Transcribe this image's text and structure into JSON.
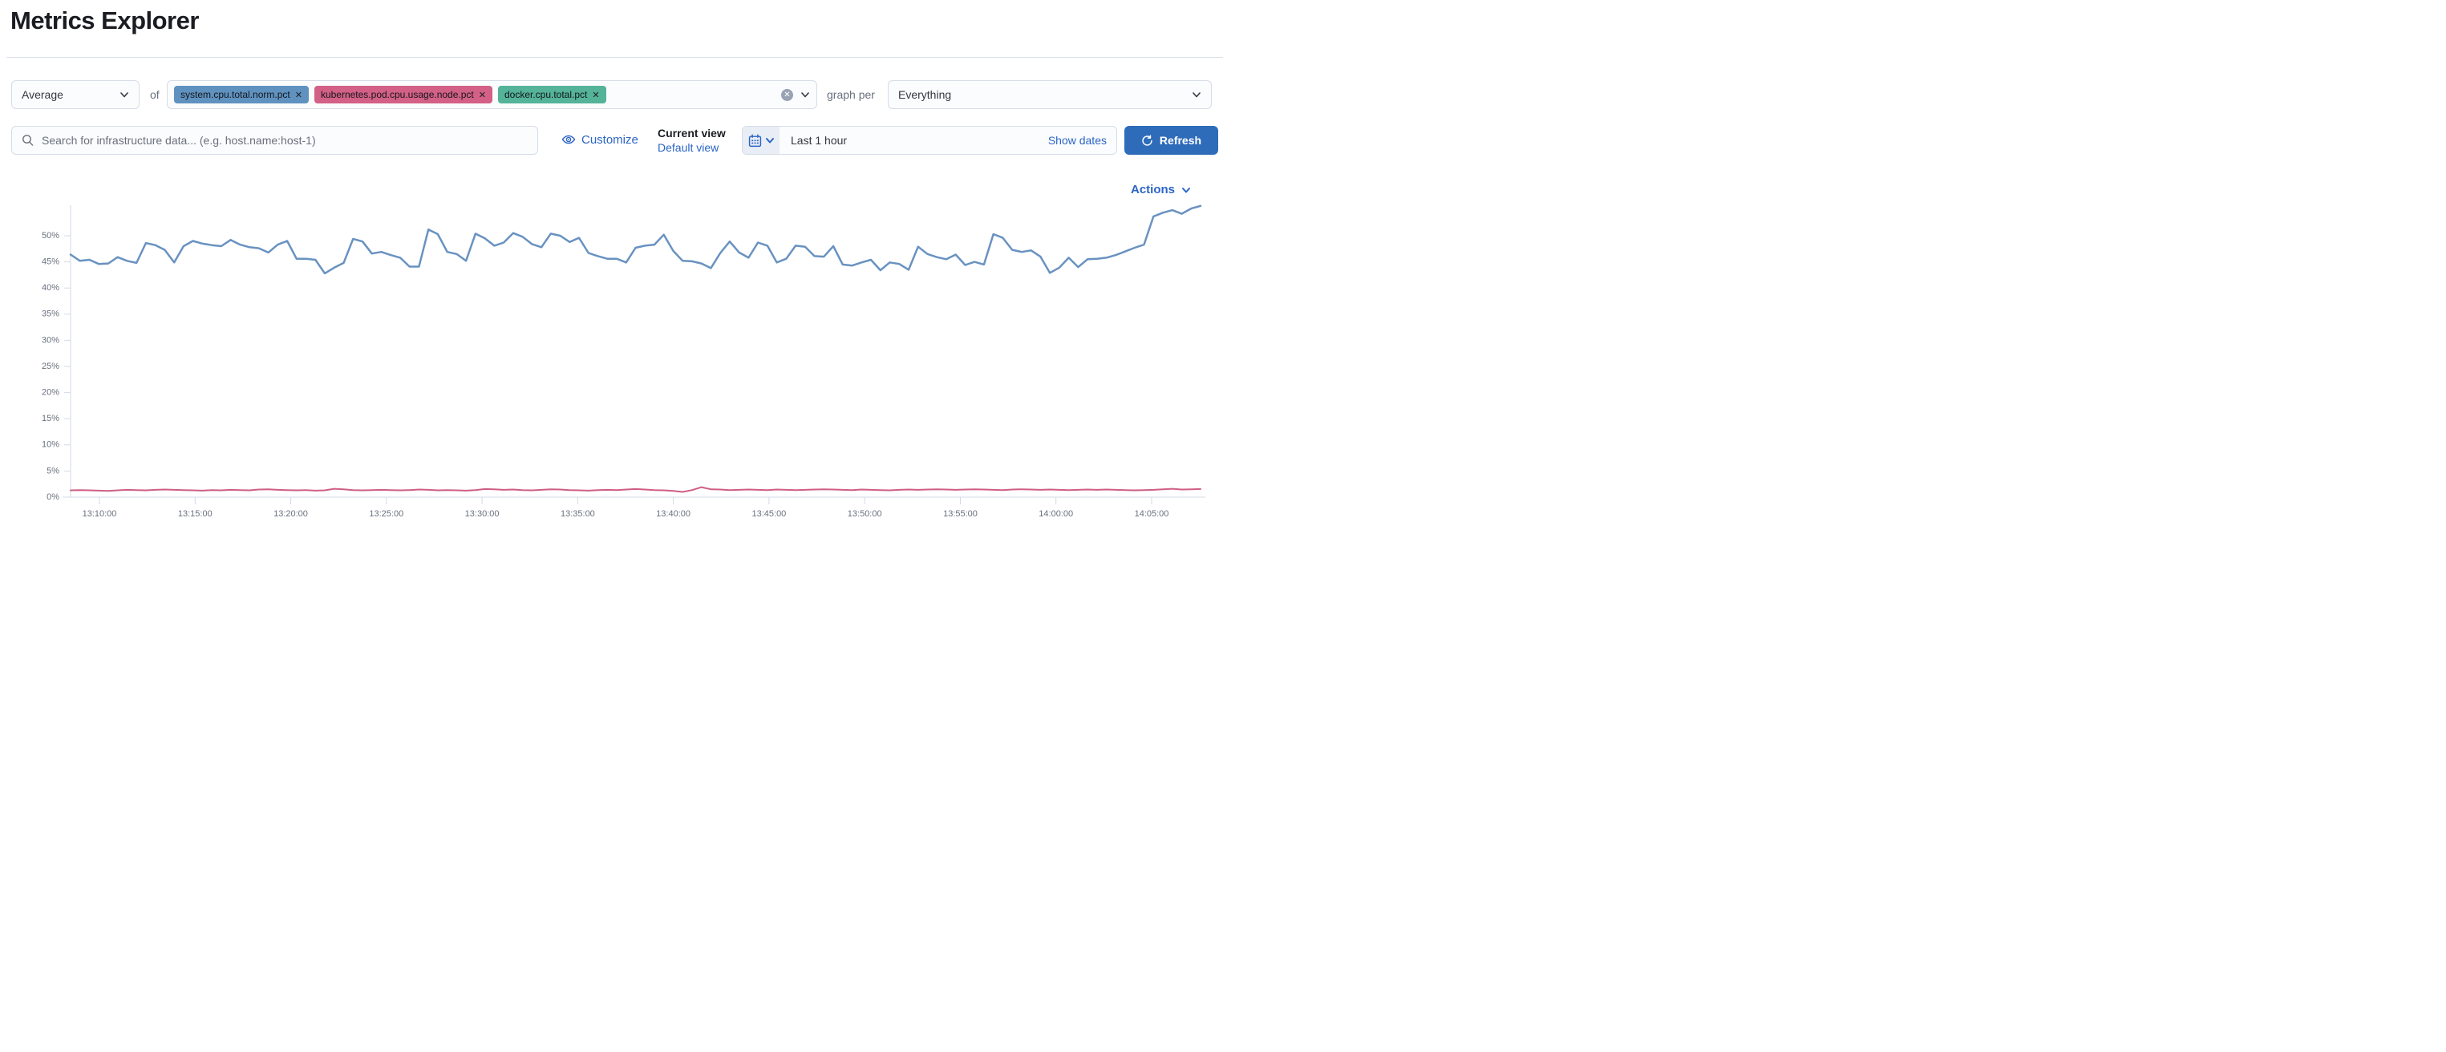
{
  "page": {
    "title": "Metrics Explorer"
  },
  "toolbar": {
    "aggregation": {
      "value": "Average"
    },
    "of_label": "of",
    "metrics": [
      {
        "label": "system.cpu.total.norm.pct",
        "color": "#6092c0",
        "remove_icon": "✕"
      },
      {
        "label": "kubernetes.pod.cpu.usage.node.pct",
        "color": "#d36086",
        "remove_icon": "✕"
      },
      {
        "label": "docker.cpu.total.pct",
        "color": "#54b399",
        "remove_icon": "✕"
      }
    ],
    "clear_all_icon": "✕",
    "graph_per_label": "graph per",
    "group_by": {
      "value": "Everything"
    }
  },
  "search": {
    "placeholder": "Search for infrastructure data... (e.g. host.name:host-1)"
  },
  "view_controls": {
    "customize_label": "Customize",
    "current_view_label": "Current view",
    "default_view_label": "Default view"
  },
  "time_picker": {
    "value": "Last 1 hour",
    "show_dates_label": "Show dates",
    "refresh_label": "Refresh"
  },
  "actions_label": "Actions",
  "colors": {
    "link_blue": "#2b65c6",
    "button_blue": "#2e6cba",
    "axis_line": "#d3dae6",
    "axis_text": "#69707d",
    "series_blue": "#6992c1",
    "series_rose": "#cf5e82"
  },
  "chart_data": {
    "type": "line",
    "title": "",
    "xlabel": "",
    "ylabel": "",
    "legend": "none",
    "grid": "ticks-only",
    "ylim": [
      0,
      57
    ],
    "y_ticks": [
      0,
      5,
      10,
      15,
      20,
      25,
      30,
      35,
      40,
      45,
      50
    ],
    "y_tick_suffix": "%",
    "x_tick_labels": [
      "13:10:00",
      "13:15:00",
      "13:20:00",
      "13:25:00",
      "13:30:00",
      "13:35:00",
      "13:40:00",
      "13:45:00",
      "13:50:00",
      "13:55:00",
      "14:00:00",
      "14:05:00"
    ],
    "x_range_description": "approx 13:08:30 to 14:07:30, one point per ~30s",
    "series": [
      {
        "name": "system.cpu.total.norm.pct",
        "color": "#6992c1",
        "stroke_width": 2.5,
        "values": [
          46.4,
          45.2,
          45.4,
          44.6,
          44.7,
          45.9,
          45.2,
          44.8,
          48.6,
          48.2,
          47.3,
          44.9,
          48.0,
          49.0,
          48.5,
          48.2,
          48.0,
          49.2,
          48.3,
          47.8,
          47.6,
          46.8,
          48.3,
          49.0,
          45.6,
          45.6,
          45.4,
          42.8,
          43.9,
          44.8,
          49.4,
          48.9,
          46.6,
          46.9,
          46.3,
          45.8,
          44.1,
          44.1,
          51.2,
          50.3,
          46.9,
          46.5,
          45.2,
          50.4,
          49.5,
          48.1,
          48.7,
          50.5,
          49.8,
          48.4,
          47.8,
          50.4,
          50.0,
          48.8,
          49.6,
          46.7,
          46.1,
          45.6,
          45.6,
          44.9,
          47.7,
          48.1,
          48.3,
          50.2,
          47.1,
          45.2,
          45.1,
          44.7,
          43.8,
          46.7,
          48.9,
          46.8,
          45.8,
          48.7,
          48.1,
          44.9,
          45.6,
          48.1,
          47.9,
          46.1,
          46.0,
          48.0,
          44.5,
          44.3,
          44.9,
          45.4,
          43.4,
          44.9,
          44.6,
          43.5,
          47.9,
          46.5,
          45.9,
          45.5,
          46.4,
          44.4,
          45.0,
          44.5,
          50.3,
          49.6,
          47.3,
          46.9,
          47.2,
          46.0,
          42.9,
          43.9,
          45.8,
          44.0,
          45.5,
          45.6,
          45.8,
          46.3,
          47.0,
          47.7,
          48.3,
          53.7,
          54.4,
          54.9,
          54.2,
          55.2,
          55.7
        ]
      },
      {
        "name": "kubernetes.pod.cpu.usage.node.pct",
        "color": "#cf5e82",
        "stroke_width": 2,
        "values": [
          1.3,
          1.35,
          1.3,
          1.25,
          1.2,
          1.3,
          1.4,
          1.35,
          1.3,
          1.4,
          1.45,
          1.4,
          1.35,
          1.3,
          1.25,
          1.35,
          1.3,
          1.4,
          1.35,
          1.3,
          1.45,
          1.5,
          1.4,
          1.35,
          1.3,
          1.35,
          1.25,
          1.3,
          1.6,
          1.5,
          1.35,
          1.3,
          1.35,
          1.4,
          1.35,
          1.3,
          1.35,
          1.45,
          1.4,
          1.3,
          1.35,
          1.3,
          1.25,
          1.35,
          1.55,
          1.5,
          1.4,
          1.45,
          1.35,
          1.3,
          1.4,
          1.5,
          1.45,
          1.35,
          1.3,
          1.25,
          1.35,
          1.4,
          1.35,
          1.45,
          1.55,
          1.45,
          1.35,
          1.3,
          1.2,
          1.0,
          1.35,
          1.9,
          1.5,
          1.45,
          1.35,
          1.4,
          1.45,
          1.4,
          1.35,
          1.45,
          1.4,
          1.35,
          1.4,
          1.45,
          1.5,
          1.45,
          1.4,
          1.35,
          1.45,
          1.4,
          1.35,
          1.3,
          1.4,
          1.45,
          1.4,
          1.45,
          1.5,
          1.45,
          1.4,
          1.45,
          1.5,
          1.45,
          1.4,
          1.35,
          1.45,
          1.5,
          1.45,
          1.4,
          1.45,
          1.4,
          1.35,
          1.4,
          1.45,
          1.4,
          1.45,
          1.4,
          1.35,
          1.3,
          1.35,
          1.4,
          1.5,
          1.6,
          1.45,
          1.5,
          1.55
        ]
      }
    ]
  }
}
